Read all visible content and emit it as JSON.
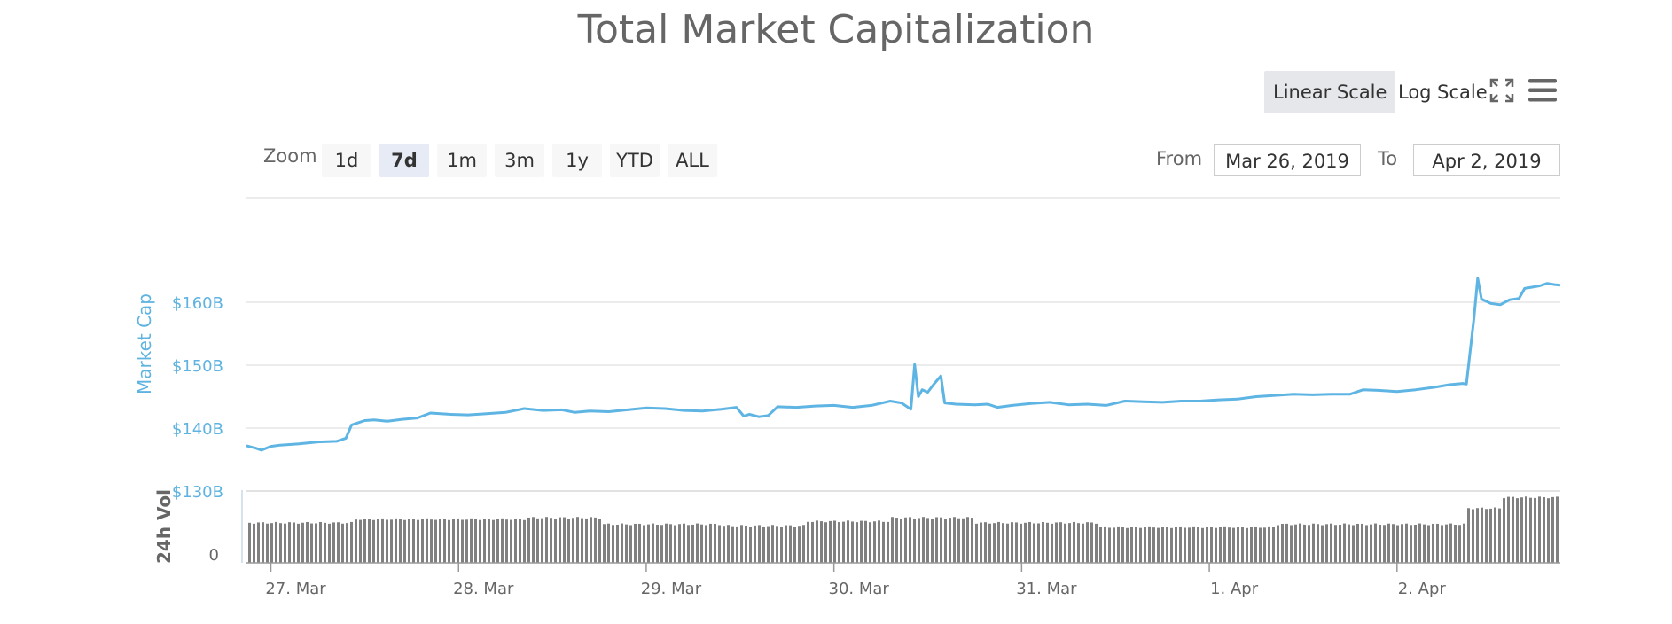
{
  "title": "Total Market Capitalization",
  "scale_buttons": {
    "linear": "Linear Scale",
    "log": "Log Scale",
    "active": "linear"
  },
  "icons": {
    "fullscreen": "expand-arrows-icon",
    "menu": "hamburger-menu-icon"
  },
  "zoom": {
    "label": "Zoom",
    "options": [
      "1d",
      "7d",
      "1m",
      "3m",
      "1y",
      "YTD",
      "ALL"
    ],
    "active": "7d"
  },
  "range": {
    "from_label": "From",
    "from_value": "Mar 26, 2019",
    "to_label": "To",
    "to_value": "Apr 2, 2019"
  },
  "colors": {
    "line": "#5eb4e3",
    "volume": "#808080",
    "grid": "#e6e6e6",
    "axis_label": "#5fb3e0"
  },
  "chart_data": {
    "type": "line",
    "title": "Total Market Capitalization",
    "ylabel": "Market Cap",
    "y_tick_labels": [
      "$130B",
      "$140B",
      "$150B",
      "$160B"
    ],
    "ylim": [
      130,
      170
    ],
    "y_unit": "billion USD",
    "x_tick_labels": [
      "27. Mar",
      "28. Mar",
      "29. Mar",
      "30. Mar",
      "31. Mar",
      "1. Apr",
      "2. Apr"
    ],
    "x_unit": "days since Mar 26, 2019 00:00",
    "xlim": [
      0.87,
      7.87
    ],
    "series": [
      {
        "name": "Market Cap",
        "points": [
          [
            0.87,
            137.2
          ],
          [
            0.92,
            136.8
          ],
          [
            0.95,
            136.5
          ],
          [
            1.0,
            137.1
          ],
          [
            1.05,
            137.3
          ],
          [
            1.15,
            137.5
          ],
          [
            1.25,
            137.8
          ],
          [
            1.35,
            137.9
          ],
          [
            1.4,
            138.4
          ],
          [
            1.43,
            140.5
          ],
          [
            1.5,
            141.2
          ],
          [
            1.55,
            141.3
          ],
          [
            1.62,
            141.1
          ],
          [
            1.7,
            141.4
          ],
          [
            1.78,
            141.6
          ],
          [
            1.85,
            142.4
          ],
          [
            1.95,
            142.2
          ],
          [
            2.05,
            142.1
          ],
          [
            2.15,
            142.3
          ],
          [
            2.25,
            142.5
          ],
          [
            2.35,
            143.1
          ],
          [
            2.45,
            142.8
          ],
          [
            2.55,
            142.9
          ],
          [
            2.62,
            142.5
          ],
          [
            2.7,
            142.7
          ],
          [
            2.8,
            142.6
          ],
          [
            2.9,
            142.9
          ],
          [
            3.0,
            143.2
          ],
          [
            3.1,
            143.1
          ],
          [
            3.2,
            142.8
          ],
          [
            3.3,
            142.7
          ],
          [
            3.4,
            143.0
          ],
          [
            3.48,
            143.3
          ],
          [
            3.52,
            141.9
          ],
          [
            3.55,
            142.2
          ],
          [
            3.6,
            141.8
          ],
          [
            3.65,
            142.0
          ],
          [
            3.7,
            143.4
          ],
          [
            3.8,
            143.3
          ],
          [
            3.9,
            143.5
          ],
          [
            4.0,
            143.6
          ],
          [
            4.1,
            143.3
          ],
          [
            4.2,
            143.6
          ],
          [
            4.3,
            144.3
          ],
          [
            4.36,
            144.0
          ],
          [
            4.41,
            143.0
          ],
          [
            4.43,
            150.1
          ],
          [
            4.45,
            145.0
          ],
          [
            4.47,
            146.1
          ],
          [
            4.5,
            145.7
          ],
          [
            4.53,
            146.9
          ],
          [
            4.57,
            148.3
          ],
          [
            4.59,
            144.0
          ],
          [
            4.65,
            143.8
          ],
          [
            4.75,
            143.7
          ],
          [
            4.82,
            143.8
          ],
          [
            4.87,
            143.3
          ],
          [
            4.95,
            143.6
          ],
          [
            5.05,
            143.9
          ],
          [
            5.15,
            144.1
          ],
          [
            5.25,
            143.7
          ],
          [
            5.35,
            143.8
          ],
          [
            5.45,
            143.6
          ],
          [
            5.55,
            144.3
          ],
          [
            5.65,
            144.2
          ],
          [
            5.75,
            144.1
          ],
          [
            5.85,
            144.3
          ],
          [
            5.95,
            144.3
          ],
          [
            6.05,
            144.5
          ],
          [
            6.15,
            144.6
          ],
          [
            6.25,
            145.0
          ],
          [
            6.35,
            145.2
          ],
          [
            6.45,
            145.4
          ],
          [
            6.55,
            145.3
          ],
          [
            6.65,
            145.4
          ],
          [
            6.75,
            145.4
          ],
          [
            6.82,
            146.1
          ],
          [
            6.9,
            146.0
          ],
          [
            7.0,
            145.8
          ],
          [
            7.1,
            146.1
          ],
          [
            7.2,
            146.5
          ],
          [
            7.28,
            146.9
          ],
          [
            7.35,
            147.1
          ],
          [
            7.37,
            147.0
          ],
          [
            7.41,
            157.5
          ],
          [
            7.43,
            163.8
          ],
          [
            7.45,
            160.5
          ],
          [
            7.5,
            159.8
          ],
          [
            7.55,
            159.6
          ],
          [
            7.6,
            160.4
          ],
          [
            7.65,
            160.6
          ],
          [
            7.68,
            162.2
          ],
          [
            7.72,
            162.4
          ],
          [
            7.76,
            162.6
          ],
          [
            7.8,
            163.0
          ],
          [
            7.84,
            162.8
          ],
          [
            7.87,
            162.7
          ]
        ]
      }
    ],
    "volume": {
      "name": "24h Vol",
      "y_tick_labels": [
        "0"
      ],
      "ylim": [
        0,
        1
      ],
      "relative_heights_by_region": [
        [
          0.87,
          1.43,
          0.55
        ],
        [
          1.43,
          2.35,
          0.6
        ],
        [
          2.35,
          2.75,
          0.62
        ],
        [
          2.75,
          3.4,
          0.53
        ],
        [
          3.4,
          3.85,
          0.51
        ],
        [
          3.85,
          4.3,
          0.57
        ],
        [
          4.3,
          4.75,
          0.62
        ],
        [
          4.75,
          5.4,
          0.55
        ],
        [
          5.4,
          6.35,
          0.49
        ],
        [
          6.35,
          7.37,
          0.53
        ],
        [
          7.37,
          7.55,
          0.75
        ],
        [
          7.55,
          7.87,
          0.9
        ]
      ]
    },
    "legend": false,
    "grid": true
  }
}
